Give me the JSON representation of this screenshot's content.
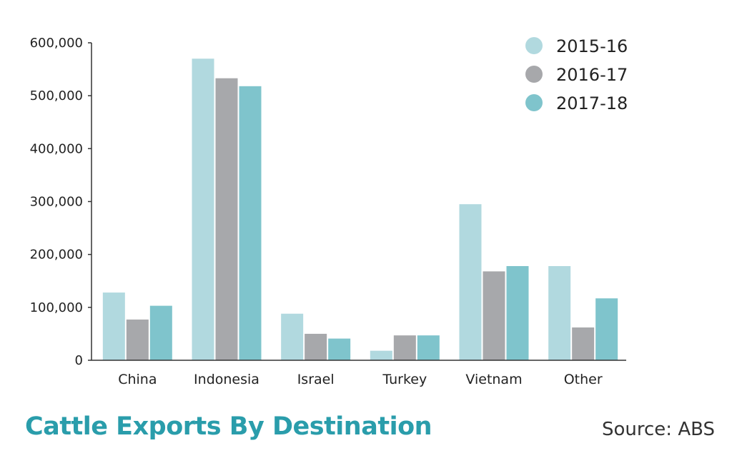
{
  "chart_data": {
    "type": "bar",
    "title": "Cattle Exports By Destination",
    "source": "Source: ABS",
    "categories": [
      "China",
      "Indonesia",
      "Israel",
      "Turkey",
      "Vietnam",
      "Other"
    ],
    "series": [
      {
        "name": "2015-16",
        "color": "#b1d9df",
        "values": [
          128000,
          570000,
          88000,
          18000,
          295000,
          178000
        ]
      },
      {
        "name": "2016-17",
        "color": "#a7a8ab",
        "values": [
          77000,
          533000,
          50000,
          47000,
          168000,
          62000
        ]
      },
      {
        "name": "2017-18",
        "color": "#7fc4cc",
        "values": [
          103000,
          518000,
          41000,
          47000,
          178000,
          117000
        ]
      }
    ],
    "yticks": [
      0,
      100000,
      200000,
      300000,
      400000,
      500000,
      600000
    ],
    "ytick_labels": [
      "0",
      "100,000",
      "200,000",
      "300,000",
      "400,000",
      "500,000",
      "600,000"
    ],
    "ylim": [
      0,
      600000
    ],
    "xlabel": "",
    "ylabel": "",
    "legend": "top-right",
    "grid": false,
    "title_color": "#2a9dab"
  }
}
